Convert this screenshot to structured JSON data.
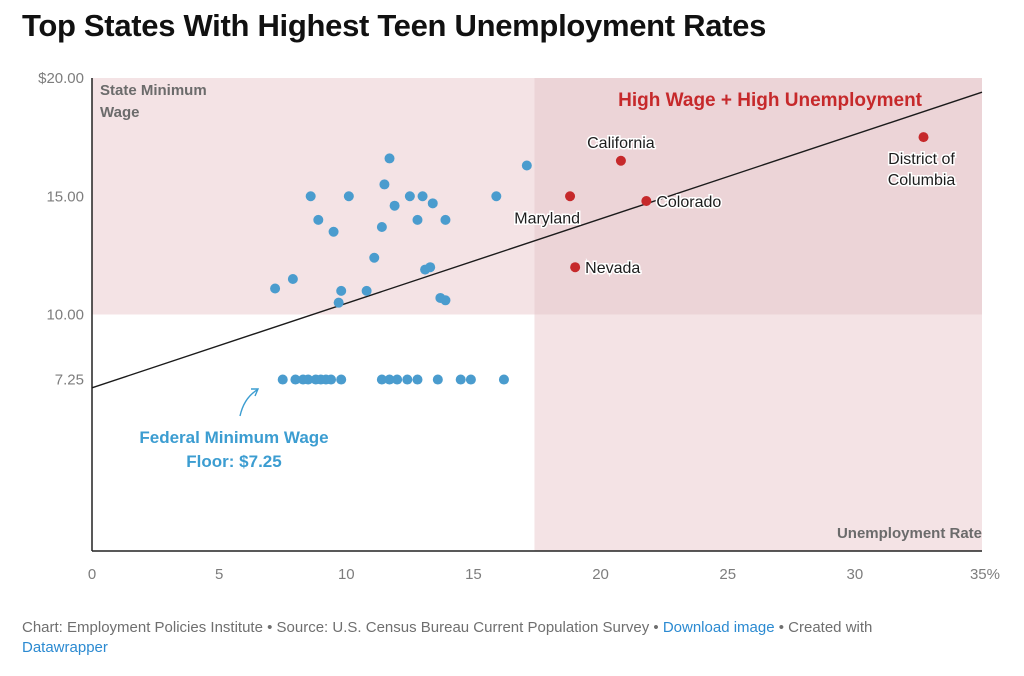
{
  "title": "Top States With Highest Teen Unemployment Rates",
  "footer": {
    "chart_credit": "Chart: Employment Policies Institute",
    "source": "Source: U.S. Census Bureau Current Population Survey",
    "download_label": "Download image",
    "created_with": "Created with",
    "tool_name": "Datawrapper",
    "separator": " • "
  },
  "colors": {
    "highlight_region": "#f4e3e5",
    "highlight_region_overlap": "#ecd4d7",
    "highlight_text": "#c6292b",
    "dot_blue": "#4a9cce",
    "dot_red": "#c6292b",
    "annotation_blue": "#3c9dd1",
    "axis": "#222222",
    "tick_text": "#7d7d7d",
    "region_label": "#6b6b6b"
  },
  "chart_data": {
    "type": "scatter",
    "xlim": [
      0,
      35
    ],
    "ylim": [
      0,
      20
    ],
    "x_ticks": [
      {
        "value": 0,
        "label": "0"
      },
      {
        "value": 5,
        "label": "5"
      },
      {
        "value": 10,
        "label": "10"
      },
      {
        "value": 15,
        "label": "15"
      },
      {
        "value": 20,
        "label": "20"
      },
      {
        "value": 25,
        "label": "25"
      },
      {
        "value": 30,
        "label": "30"
      },
      {
        "value": 35,
        "label": "35%"
      }
    ],
    "y_ticks": [
      {
        "value": 7.25,
        "label": "7.25"
      },
      {
        "value": 10,
        "label": "10.00"
      },
      {
        "value": 15,
        "label": "15.00"
      },
      {
        "value": 20,
        "label": "$20.00"
      }
    ],
    "xlabel": "Unemployment Rate",
    "ylabel": "State Minimum Wage",
    "grid": false,
    "highlight_regions": [
      {
        "x": [
          0,
          35
        ],
        "y": [
          10,
          20
        ]
      },
      {
        "x": [
          17.4,
          35
        ],
        "y": [
          0,
          20
        ]
      }
    ],
    "region_title": "High Wage + High Unemployment",
    "trendline": {
      "x": [
        0,
        35
      ],
      "y": [
        6.9,
        19.4
      ]
    },
    "federal_floor_annotation": [
      "Federal Minimum Wage",
      "Floor: $7.25"
    ],
    "points_other": [
      {
        "x": 7.2,
        "y": 11.1
      },
      {
        "x": 7.9,
        "y": 11.5
      },
      {
        "x": 8.6,
        "y": 15.0
      },
      {
        "x": 8.9,
        "y": 14.0
      },
      {
        "x": 9.5,
        "y": 13.5
      },
      {
        "x": 9.7,
        "y": 10.5
      },
      {
        "x": 9.8,
        "y": 11.0
      },
      {
        "x": 10.1,
        "y": 15.0
      },
      {
        "x": 10.8,
        "y": 11.0
      },
      {
        "x": 11.1,
        "y": 12.4
      },
      {
        "x": 11.4,
        "y": 13.7
      },
      {
        "x": 11.5,
        "y": 15.5
      },
      {
        "x": 11.7,
        "y": 16.6
      },
      {
        "x": 11.9,
        "y": 14.6
      },
      {
        "x": 12.5,
        "y": 15.0
      },
      {
        "x": 12.8,
        "y": 14.0
      },
      {
        "x": 13.0,
        "y": 15.0
      },
      {
        "x": 13.1,
        "y": 11.9
      },
      {
        "x": 13.3,
        "y": 12.0
      },
      {
        "x": 13.4,
        "y": 14.7
      },
      {
        "x": 13.7,
        "y": 10.7
      },
      {
        "x": 13.9,
        "y": 10.6
      },
      {
        "x": 13.9,
        "y": 14.0
      },
      {
        "x": 15.9,
        "y": 15.0
      },
      {
        "x": 17.1,
        "y": 16.3
      },
      {
        "x": 7.5,
        "y": 7.25
      },
      {
        "x": 8.0,
        "y": 7.25
      },
      {
        "x": 8.3,
        "y": 7.25
      },
      {
        "x": 8.5,
        "y": 7.25
      },
      {
        "x": 8.8,
        "y": 7.25
      },
      {
        "x": 9.0,
        "y": 7.25
      },
      {
        "x": 9.2,
        "y": 7.25
      },
      {
        "x": 9.4,
        "y": 7.25
      },
      {
        "x": 9.8,
        "y": 7.25
      },
      {
        "x": 11.4,
        "y": 7.25
      },
      {
        "x": 11.7,
        "y": 7.25
      },
      {
        "x": 12.0,
        "y": 7.25
      },
      {
        "x": 12.4,
        "y": 7.25
      },
      {
        "x": 12.8,
        "y": 7.25
      },
      {
        "x": 13.6,
        "y": 7.25
      },
      {
        "x": 14.5,
        "y": 7.25
      },
      {
        "x": 14.9,
        "y": 7.25
      },
      {
        "x": 16.2,
        "y": 7.25
      }
    ],
    "points_highlighted": [
      {
        "label": "California",
        "x": 20.8,
        "y": 16.5
      },
      {
        "label": "Maryland",
        "x": 18.8,
        "y": 15.0
      },
      {
        "label": "Colorado",
        "x": 21.8,
        "y": 14.8
      },
      {
        "label": "Nevada",
        "x": 19.0,
        "y": 12.0
      },
      {
        "label": "District of Columbia",
        "lines": [
          "District of",
          "Columbia"
        ],
        "x": 32.7,
        "y": 17.5
      }
    ]
  }
}
